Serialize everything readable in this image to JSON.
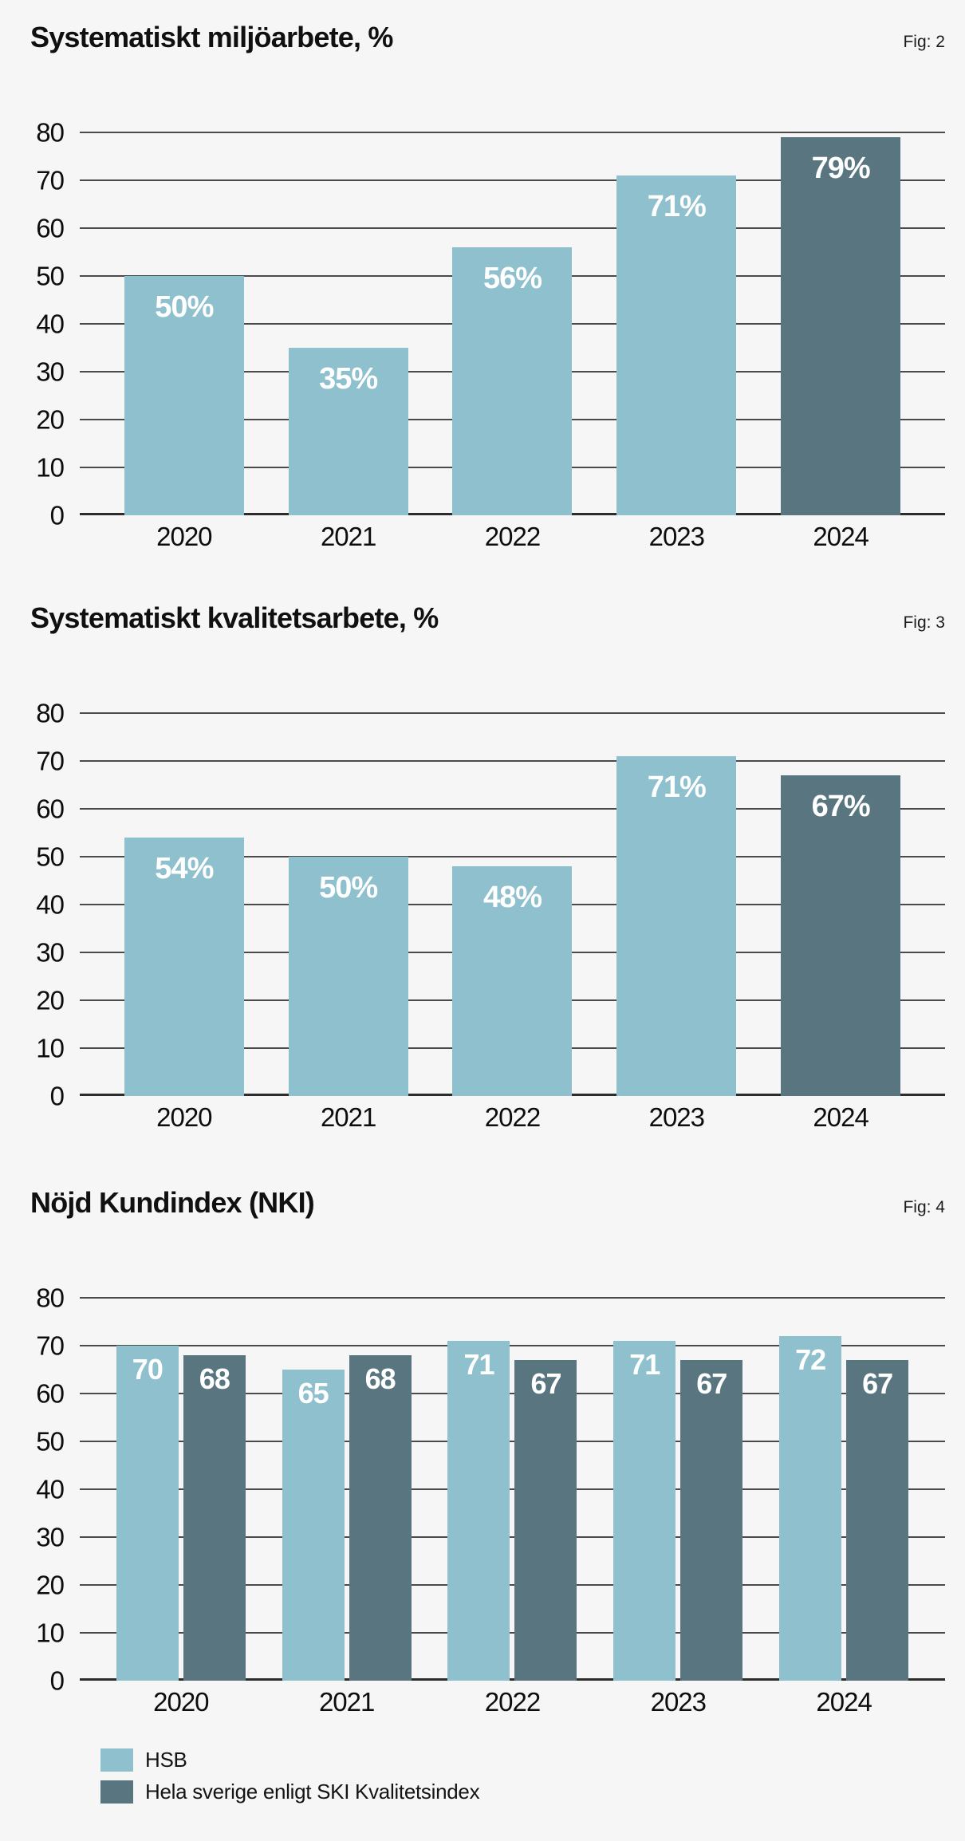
{
  "page_background": "#f6f6f7",
  "colors": {
    "light": "#8FC0CD",
    "dark": "#597680",
    "grid": "#4a4a4a",
    "axis": "#2c2c2c",
    "bar_label_text": "#ffffff"
  },
  "chart_data": [
    {
      "type": "bar",
      "title": "Systematiskt miljöarbete, %",
      "fig_label": "Fig: 2",
      "categories": [
        "2020",
        "2021",
        "2022",
        "2023",
        "2024"
      ],
      "values": [
        50,
        35,
        56,
        71,
        79
      ],
      "bar_labels": [
        "50%",
        "35%",
        "56%",
        "71%",
        "79%"
      ],
      "bar_color_keys": [
        "light",
        "light",
        "light",
        "light",
        "dark"
      ],
      "ylim": [
        0,
        80
      ],
      "y_ticks": [
        80,
        70,
        60,
        50,
        40,
        30,
        20,
        10,
        0
      ],
      "grid": true,
      "legend_position": "none"
    },
    {
      "type": "bar",
      "title": "Systematiskt kvalitetsarbete, %",
      "fig_label": "Fig: 3",
      "categories": [
        "2020",
        "2021",
        "2022",
        "2023",
        "2024"
      ],
      "values": [
        54,
        50,
        48,
        71,
        67
      ],
      "bar_labels": [
        "54%",
        "50%",
        "48%",
        "71%",
        "67%"
      ],
      "bar_color_keys": [
        "light",
        "light",
        "light",
        "light",
        "dark"
      ],
      "ylim": [
        0,
        80
      ],
      "y_ticks": [
        80,
        70,
        60,
        50,
        40,
        30,
        20,
        10,
        0
      ],
      "grid": true,
      "legend_position": "none"
    },
    {
      "type": "bar",
      "title": "Nöjd Kundindex (NKI)",
      "fig_label": "Fig: 4",
      "categories": [
        "2020",
        "2021",
        "2022",
        "2023",
        "2024"
      ],
      "series": [
        {
          "name": "HSB",
          "color_key": "light",
          "values": [
            70,
            65,
            71,
            71,
            72
          ]
        },
        {
          "name": "Hela sverige enligt SKI Kvalitetsindex",
          "color_key": "dark",
          "values": [
            68,
            68,
            67,
            67,
            67
          ]
        }
      ],
      "ylim": [
        0,
        80
      ],
      "y_ticks": [
        80,
        70,
        60,
        50,
        40,
        30,
        20,
        10,
        0
      ],
      "grid": true,
      "legend_position": "bottom-left"
    }
  ]
}
